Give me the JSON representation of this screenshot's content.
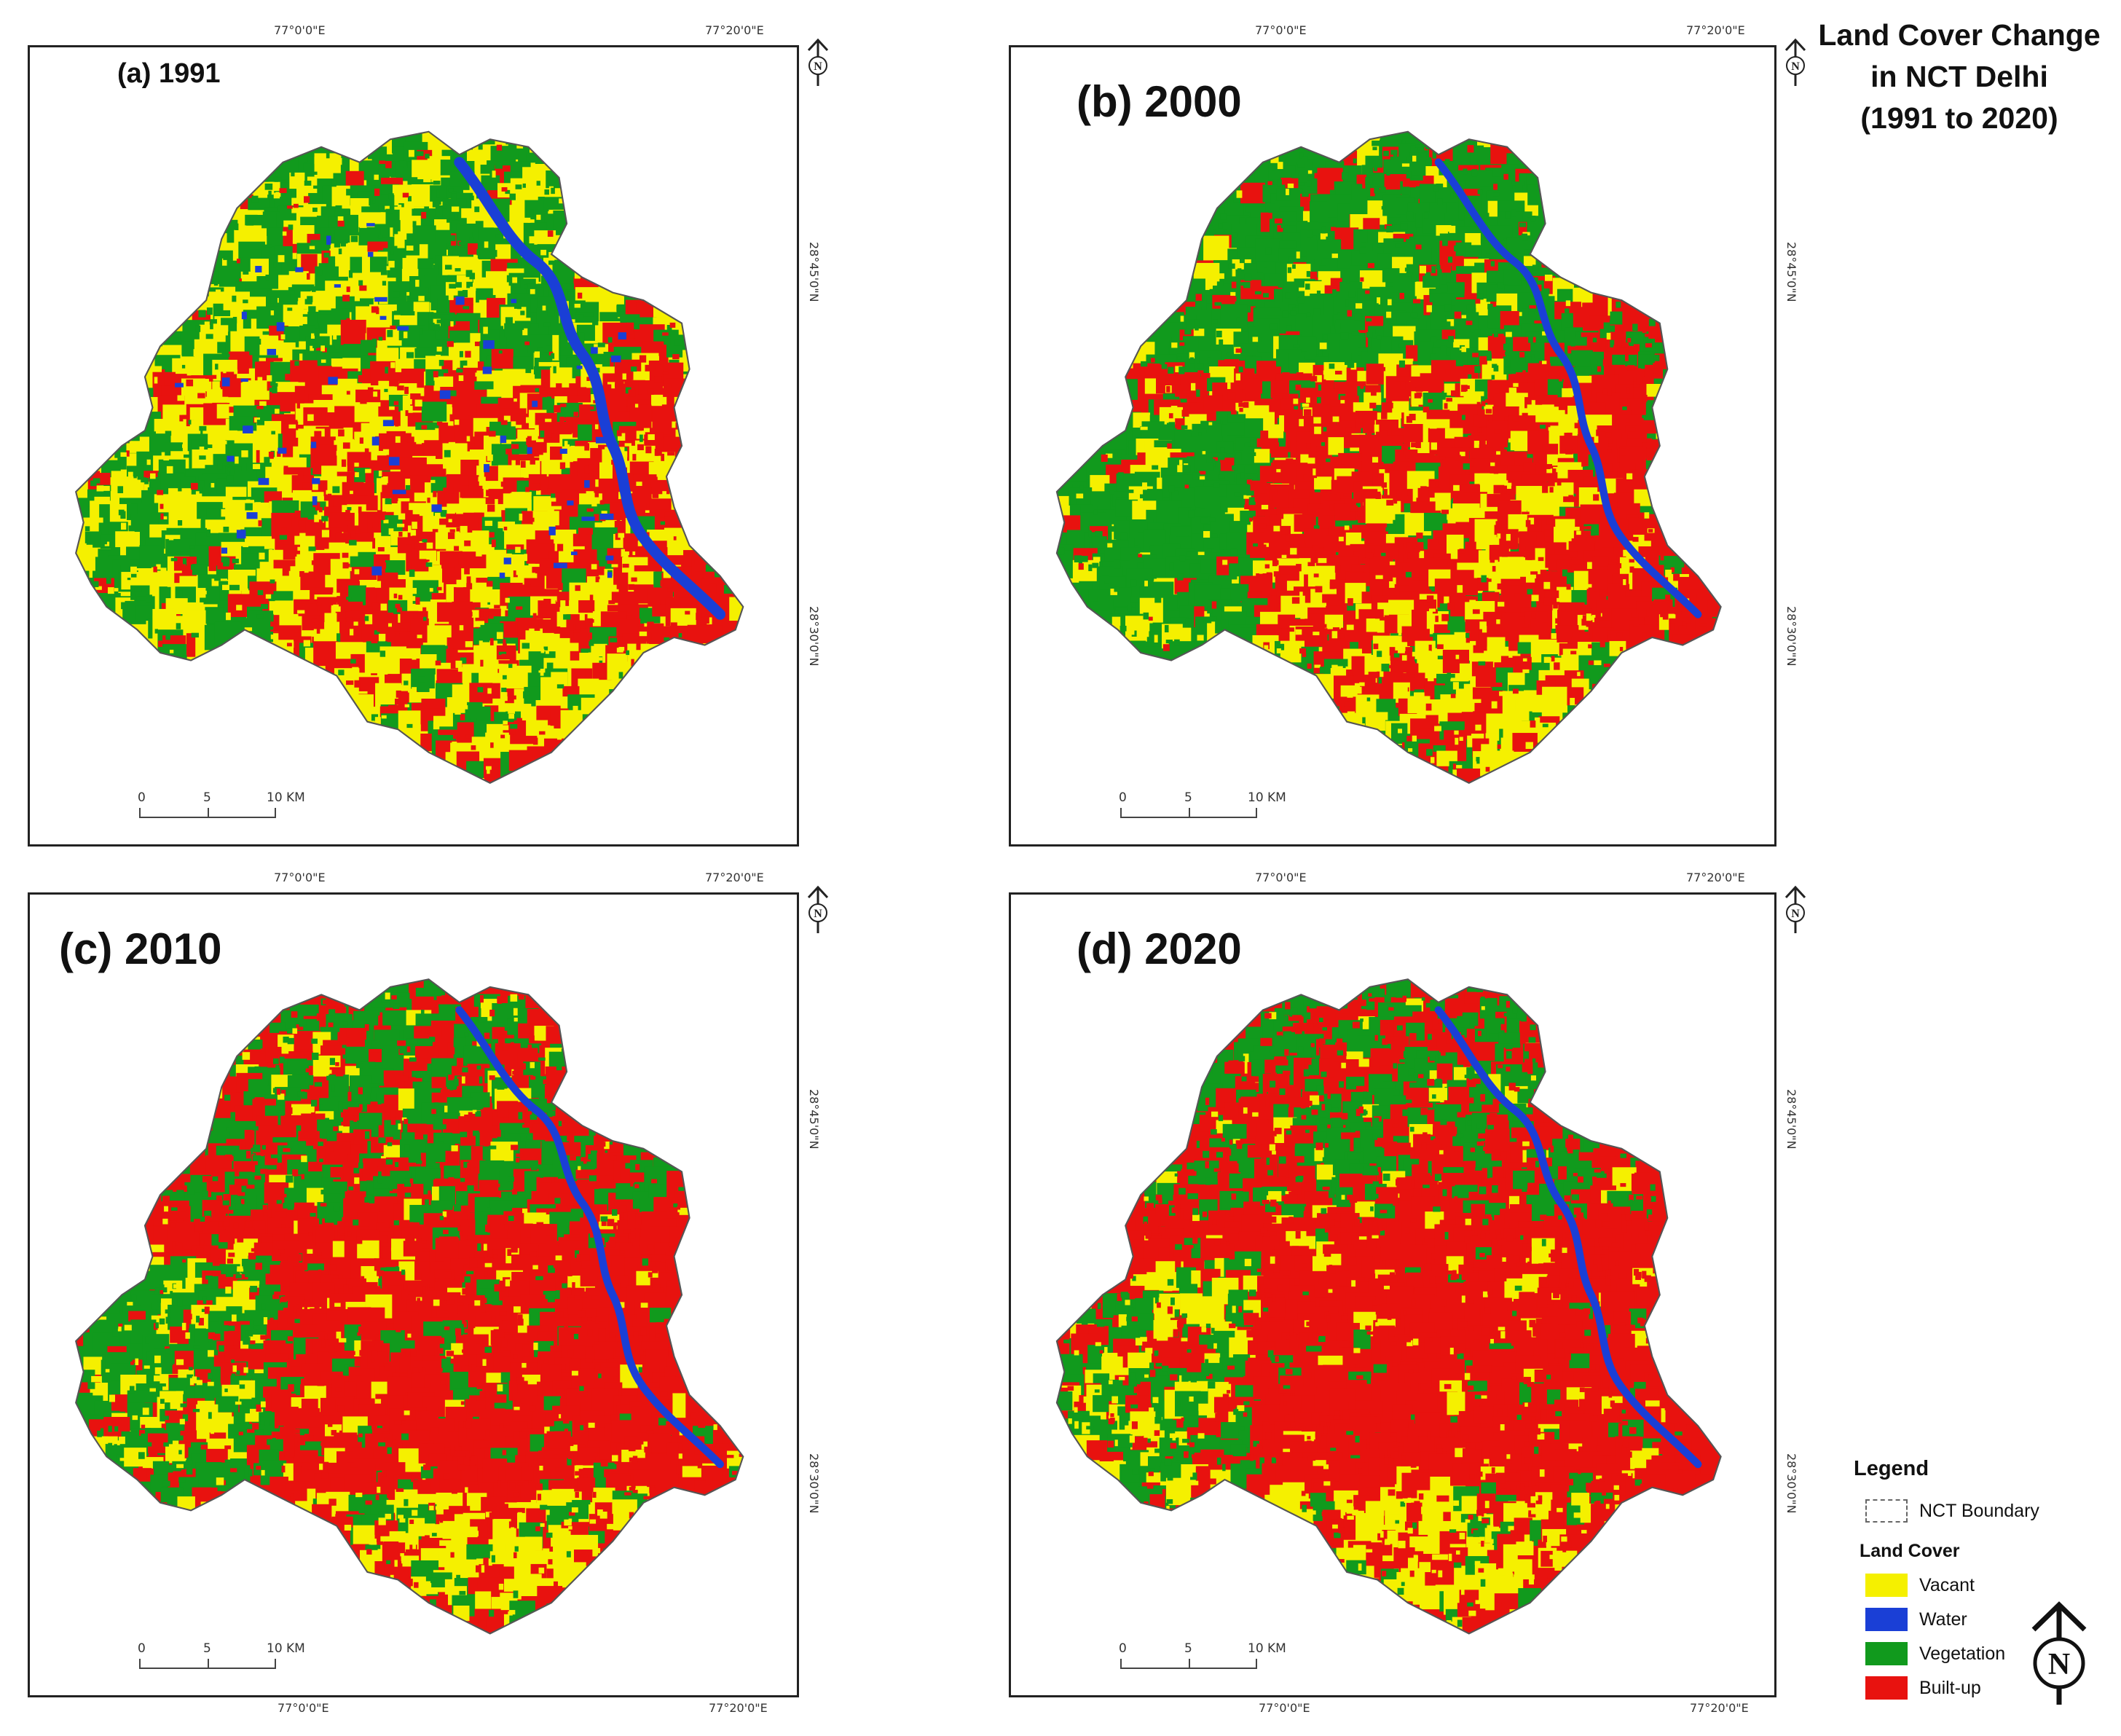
{
  "title": {
    "line1": "Land Cover Change",
    "line2": "in NCT Delhi",
    "line3": "(1991 to 2020)"
  },
  "colors": {
    "vacant": "#f5f000",
    "water": "#1a3fd6",
    "vegetation": "#119a1d",
    "builtup": "#e8120f",
    "boundary": "#555555"
  },
  "panels": [
    {
      "label": "(a) 1991",
      "style": "small",
      "dominant": "vegetation+vacant",
      "top_coords": [
        "77°0'0\"E",
        "77°20'0\"E"
      ],
      "bottom_coords": [],
      "side_coords": [
        "28°45'0\"N",
        "28°30'0\"N"
      ],
      "scale": [
        "0",
        "5",
        "10 KM"
      ]
    },
    {
      "label": "(b) 2000",
      "style": "big",
      "dominant": "vegetation+builtup",
      "top_coords": [
        "77°0'0\"E",
        "77°20'0\"E"
      ],
      "bottom_coords": [],
      "side_coords": [
        "28°45'0\"N",
        "28°30'0\"N"
      ],
      "scale": [
        "0",
        "5",
        "10 KM"
      ]
    },
    {
      "label": "(c) 2010",
      "style": "big",
      "dominant": "builtup",
      "top_coords": [
        "77°0'0\"E",
        "77°20'0\"E"
      ],
      "bottom_coords": [
        "77°0'0\"E",
        "77°20'0\"E"
      ],
      "side_coords": [
        "28°45'0\"N",
        "28°30'0\"N"
      ],
      "scale": [
        "0",
        "5",
        "10 KM"
      ]
    },
    {
      "label": "(d) 2020",
      "style": "big",
      "dominant": "builtup",
      "top_coords": [
        "77°0'0\"E",
        "77°20'0\"E"
      ],
      "bottom_coords": [
        "77°0'0\"E",
        "77°20'0\"E"
      ],
      "side_coords": [
        "28°45'0\"N",
        "28°30'0\"N"
      ],
      "scale": [
        "0",
        "5",
        "10 KM"
      ]
    }
  ],
  "north_letter": "N",
  "legend": {
    "title": "Legend",
    "boundary_label": "NCT Boundary",
    "landcover_title": "Land Cover",
    "items": [
      {
        "label": "Vacant",
        "color": "#f5f000"
      },
      {
        "label": "Water",
        "color": "#1a3fd6"
      },
      {
        "label": "Vegetation",
        "color": "#119a1d"
      },
      {
        "label": "Built-up",
        "color": "#e8120f"
      }
    ]
  }
}
